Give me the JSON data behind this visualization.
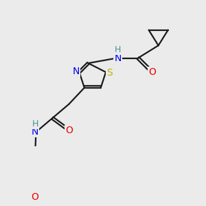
{
  "bg_color": "#ebebeb",
  "atom_colors": {
    "C": "#1a1a1a",
    "H": "#4a8f8f",
    "N": "#0000ee",
    "O": "#ee0000",
    "S": "#b8b800"
  },
  "bond_color": "#1a1a1a",
  "bond_width": 1.6,
  "font_size": 10,
  "font_size_h": 9
}
